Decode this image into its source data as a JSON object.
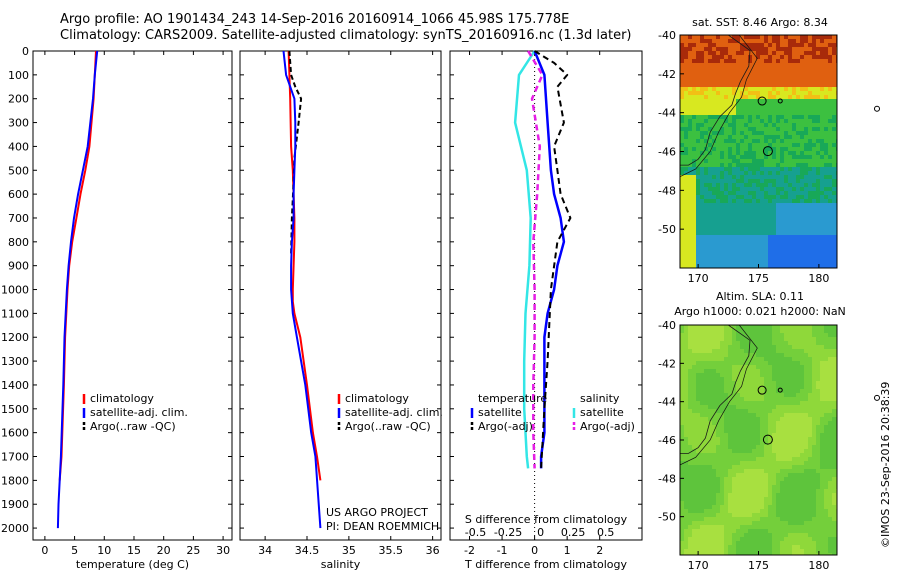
{
  "title": {
    "line1": "Argo profile: AO 1901434_243 14-Sep-2016 20160914_1066 45.98S 175.778E",
    "line2": "Climatology: CARS2009. Satellite-adjusted climatology: synTS_20160916.nc (1.3d later)"
  },
  "credit": "US ARGO PROJECT",
  "pi": "PI: DEAN ROEMMICH",
  "watermark": "©IMOS 23-Sep-2016 20:38:39",
  "colors": {
    "climatology": "#ff0000",
    "satellite": "#0000ff",
    "argo": "#000000",
    "sal_satellite": "#33e6e6",
    "sal_argo": "#e61ee6"
  },
  "chart_data": [
    {
      "type": "line",
      "xlabel": "temperature (deg C)",
      "ylabel": "",
      "xlim": [
        -2,
        31.5
      ],
      "ylim": [
        2050,
        0
      ],
      "xticks": [
        0,
        5,
        10,
        15,
        20,
        25,
        30
      ],
      "yticks": [
        0,
        100,
        200,
        300,
        400,
        500,
        600,
        700,
        800,
        900,
        1000,
        1100,
        1200,
        1300,
        1400,
        1500,
        1600,
        1700,
        1800,
        1900,
        2000
      ],
      "legend": {
        "position": "lower-right",
        "entries": [
          "climatology",
          "satellite-adj. clim.",
          "Argo(..raw -QC)"
        ]
      },
      "series": [
        {
          "name": "climatology",
          "x": [
            8.6,
            8.5,
            8.4,
            8.2,
            7.5,
            6.8,
            6.0,
            5.3,
            4.6,
            4.1,
            3.8,
            3.6,
            3.4,
            3.2,
            2.8,
            2.5
          ],
          "y": [
            0,
            50,
            100,
            200,
            400,
            500,
            600,
            700,
            800,
            900,
            1000,
            1100,
            1200,
            1400,
            1700,
            1800
          ]
        },
        {
          "name": "satellite-adj. clim.",
          "x": [
            8.8,
            8.6,
            8.4,
            8.1,
            7.2,
            6.4,
            5.6,
            4.9,
            4.4,
            4.0,
            3.7,
            3.5,
            3.3,
            3.1,
            2.7,
            2.5,
            2.3,
            2.2
          ],
          "y": [
            0,
            50,
            100,
            200,
            400,
            500,
            600,
            700,
            800,
            900,
            1000,
            1100,
            1200,
            1400,
            1700,
            1800,
            1900,
            2000
          ]
        },
        {
          "name": "Argo(..raw -QC)",
          "x": [],
          "y": []
        }
      ]
    },
    {
      "type": "line",
      "xlabel": "salinity",
      "ylabel": "",
      "xlim": [
        33.7,
        36.1
      ],
      "ylim": [
        2050,
        0
      ],
      "xticks": [
        34,
        34.5,
        35,
        35.5,
        36
      ],
      "legend": {
        "position": "lower-right",
        "entries": [
          "climatology",
          "satellite-adj. clim.",
          "Argo(..raw -QC)"
        ]
      },
      "series": [
        {
          "name": "climatology",
          "x": [
            34.28,
            34.29,
            34.3,
            34.31,
            34.33,
            34.34,
            34.35,
            34.35,
            34.34,
            34.33,
            34.33,
            34.35,
            34.42,
            34.5,
            34.57,
            34.62,
            34.66
          ],
          "y": [
            0,
            100,
            200,
            400,
            500,
            600,
            700,
            800,
            900,
            1000,
            1050,
            1100,
            1200,
            1400,
            1600,
            1700,
            1800
          ]
        },
        {
          "name": "satellite-adj. clim.",
          "x": [
            34.22,
            34.25,
            34.35,
            34.36,
            34.36,
            34.35,
            34.34,
            34.34,
            34.32,
            34.31,
            34.31,
            34.33,
            34.38,
            34.48,
            34.55,
            34.6,
            34.63,
            34.66
          ],
          "y": [
            0,
            100,
            200,
            300,
            400,
            500,
            600,
            700,
            800,
            900,
            1000,
            1100,
            1200,
            1400,
            1600,
            1700,
            1850,
            2000
          ]
        },
        {
          "name": "Argo(..raw -QC)",
          "x": [
            34.29,
            34.31,
            34.36,
            34.43,
            34.4,
            34.35,
            34.34,
            34.32,
            34.31
          ],
          "y": [
            0,
            100,
            150,
            200,
            300,
            450,
            550,
            700,
            850
          ]
        }
      ]
    },
    {
      "type": "line",
      "xlabel": "T difference from climatology",
      "ylabel": "",
      "x_label_top": "S difference from climatology",
      "xlim": [
        -2.6,
        3.3
      ],
      "ylim": [
        2050,
        0
      ],
      "xticks": [
        -2,
        -1,
        0,
        1,
        2
      ],
      "x_top_ticks": [
        "-0.5",
        "-0.25",
        "0",
        "0.25",
        "0.5"
      ],
      "legend": {
        "position": "lower-left",
        "groups": [
          "temperature",
          "salinity"
        ],
        "entries": [
          "satellite",
          "Argo(-adj)",
          "satellite",
          "Argo(-adj)"
        ]
      },
      "series": [
        {
          "name": "satellite",
          "x": [
            0.0,
            0.3,
            0.4,
            0.5,
            0.6,
            0.8,
            0.9,
            0.7,
            0.6,
            0.4,
            0.3,
            0.3,
            0.3,
            0.3,
            0.2,
            0.2
          ],
          "y": [
            0,
            100,
            300,
            500,
            600,
            700,
            800,
            900,
            1000,
            1100,
            1200,
            1400,
            1500,
            1600,
            1700,
            1750
          ]
        },
        {
          "name": "Argo(-adj)",
          "x": [
            0.0,
            0.6,
            1.0,
            0.7,
            0.9,
            0.6,
            0.7,
            0.8,
            1.1,
            0.7,
            0.5,
            0.4,
            0.3,
            0.2
          ],
          "y": [
            0,
            50,
            100,
            150,
            300,
            400,
            500,
            600,
            700,
            800,
            1000,
            1300,
            1500,
            1750
          ]
        },
        {
          "name": "satellite",
          "x": [
            0.0,
            -0.12,
            -0.15,
            -0.06,
            -0.03,
            -0.04,
            -0.07,
            -0.08,
            -0.08,
            -0.06,
            -0.05
          ],
          "y": [
            0,
            100,
            300,
            500,
            700,
            900,
            1100,
            1300,
            1500,
            1700,
            1750
          ]
        },
        {
          "name": "Argo(-adj)",
          "x": [
            -0.05,
            0.06,
            -0.02,
            0.04,
            0.02,
            -0.01,
            0.0,
            0.0,
            -0.01,
            -0.01,
            0.0
          ],
          "y": [
            0,
            100,
            200,
            400,
            600,
            800,
            1000,
            1200,
            1400,
            1600,
            1750
          ]
        }
      ]
    },
    {
      "type": "heatmap",
      "title": "sat. SST: 8.46 Argo: 8.34",
      "xlim": [
        168.5,
        181.5
      ],
      "ylim": [
        -52,
        -40
      ],
      "xticks": [
        170,
        175,
        180
      ],
      "yticks": [
        -40,
        -42,
        -44,
        -46,
        -48,
        -50
      ],
      "profile_location": {
        "lon": 175.778,
        "lat": -45.98
      },
      "colors": [
        "#a82a0a",
        "#e06010",
        "#f2c015",
        "#d8e820",
        "#3cc040",
        "#18a858",
        "#16a090",
        "#2a9ad0",
        "#1f6ee8"
      ]
    },
    {
      "type": "heatmap",
      "title": "Altim. SLA: 0.11",
      "subtitle": "Argo h1000: 0.021 h2000: NaN",
      "xlim": [
        168.5,
        181.5
      ],
      "ylim": [
        -52,
        -40
      ],
      "xticks": [
        170,
        175,
        180
      ],
      "yticks": [
        -40,
        -42,
        -44,
        -46,
        -48,
        -50
      ],
      "profile_location": {
        "lon": 175.778,
        "lat": -45.98
      },
      "colors": [
        "#a8e040",
        "#8fd83a",
        "#74cf3b",
        "#5ec43c"
      ]
    }
  ]
}
